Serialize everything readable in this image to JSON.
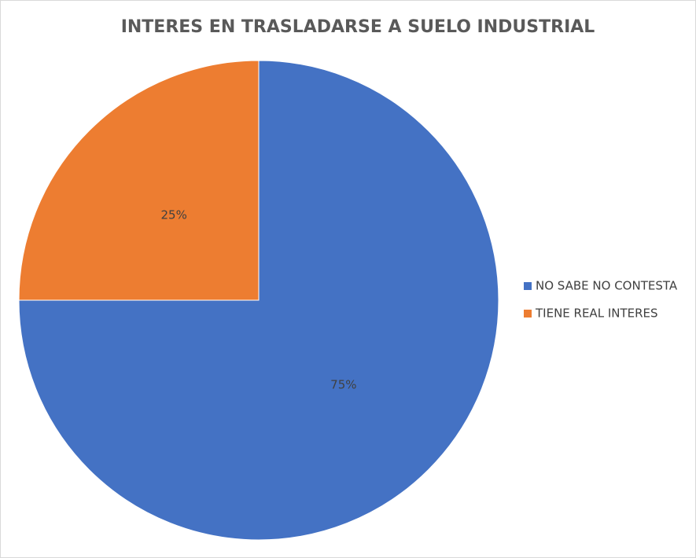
{
  "chart_data": {
    "type": "pie",
    "title": "INTERES EN TRASLADARSE A SUELO INDUSTRIAL",
    "categories": [
      "NO SABE NO CONTESTA",
      "TIENE REAL INTERES"
    ],
    "values": [
      75,
      25
    ],
    "value_labels": [
      "75%",
      "25%"
    ],
    "colors": [
      "#4472c4",
      "#ed7d31"
    ],
    "legend": "right"
  }
}
